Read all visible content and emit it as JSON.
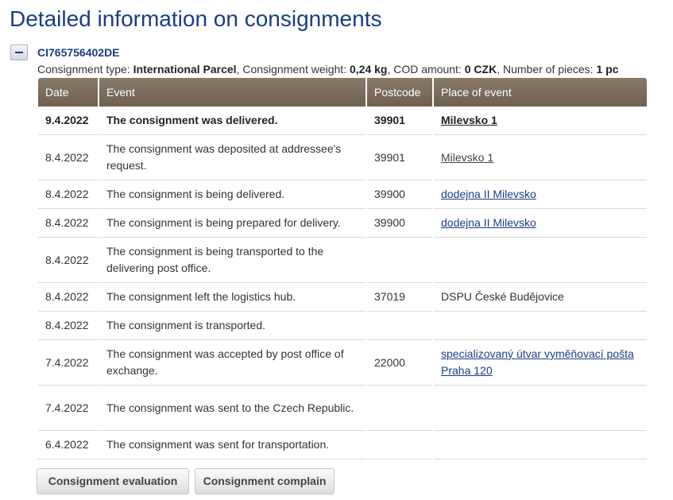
{
  "page": {
    "title": "Detailed information on consignments"
  },
  "consignment": {
    "toggle_symbol": "−",
    "id": "CI765756402DE",
    "type_label": "Consignment type:",
    "type_value": "International Parcel",
    "weight_label": "Consignment weight:",
    "weight_value": "0,24 kg",
    "cod_label": "COD amount:",
    "cod_value": "0 CZK",
    "pieces_label": "Number of pieces:",
    "pieces_value": "1 pc"
  },
  "table": {
    "headers": [
      "Date",
      "Event",
      "Postcode",
      "Place of event"
    ],
    "rows": [
      {
        "date": "9.4.2022",
        "event": "The consignment was delivered.",
        "postcode": "39901",
        "place": "Milevsko 1",
        "place_link": true,
        "place_style": "dark"
      },
      {
        "date": "8.4.2022",
        "event": "The consignment was deposited at addressee's request.",
        "postcode": "39901",
        "place": "Milevsko 1",
        "place_link": true,
        "place_style": "gray"
      },
      {
        "date": "8.4.2022",
        "event": "The consignment is being delivered.",
        "postcode": "39900",
        "place": "dodejna II Milevsko",
        "place_link": true,
        "place_style": "blue"
      },
      {
        "date": "8.4.2022",
        "event": "The consignment is being prepared for delivery.",
        "postcode": "39900",
        "place": "dodejna II Milevsko",
        "place_link": true,
        "place_style": "blue"
      },
      {
        "date": "8.4.2022",
        "event": "The consignment is being transported to the delivering post office.",
        "postcode": "",
        "place": "",
        "place_link": false,
        "place_style": "plain"
      },
      {
        "date": "8.4.2022",
        "event": "The consignment left the logistics hub.",
        "postcode": "37019",
        "place": "DSPU České Budějovice",
        "place_link": false,
        "place_style": "plain"
      },
      {
        "date": "8.4.2022",
        "event": "The consignment is transported.",
        "postcode": "",
        "place": "",
        "place_link": false,
        "place_style": "plain"
      },
      {
        "date": "7.4.2022",
        "event": "The consignment was accepted by post office of exchange.",
        "postcode": "22000",
        "place": "specializovaný útvar vyměňovací pošta Praha 120",
        "place_link": true,
        "place_style": "blue"
      },
      {
        "date": "7.4.2022",
        "event": "The consignment was sent to the Czech Republic.",
        "postcode": "",
        "place": "",
        "place_link": false,
        "place_style": "plain"
      },
      {
        "date": "6.4.2022",
        "event": "The consignment was sent for transportation.",
        "postcode": "",
        "place": "",
        "place_link": false,
        "place_style": "plain"
      }
    ]
  },
  "actions": {
    "evaluation_label": "Consignment evaluation",
    "complain_label": "Consignment complain"
  },
  "colors": {
    "title": "#1b3c86",
    "header_bg": "#7a6b5c",
    "link": "#1b3c86"
  }
}
